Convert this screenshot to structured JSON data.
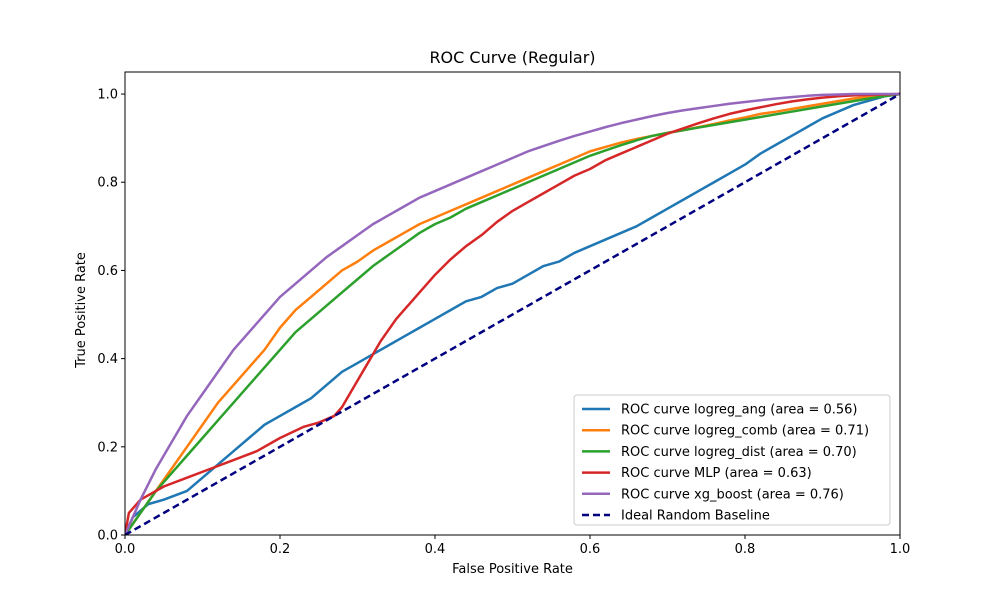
{
  "chart_data": {
    "type": "line",
    "title": "ROC Curve (Regular)",
    "xlabel": "False Positive Rate",
    "ylabel": "True Positive Rate",
    "xlim": [
      0.0,
      1.0
    ],
    "ylim": [
      0.0,
      1.05
    ],
    "xticks": [
      "0.0",
      "0.2",
      "0.4",
      "0.6",
      "0.8",
      "1.0"
    ],
    "yticks": [
      "0.0",
      "0.2",
      "0.4",
      "0.6",
      "0.8",
      "1.0"
    ],
    "grid": false,
    "legend_position": "lower-right",
    "series": [
      {
        "name": "ROC curve logreg_ang (area = 0.56)",
        "color": "#1f77b4",
        "dash": "solid",
        "points": [
          [
            0,
            0
          ],
          [
            0.01,
            0.04
          ],
          [
            0.03,
            0.07
          ],
          [
            0.05,
            0.08
          ],
          [
            0.08,
            0.1
          ],
          [
            0.1,
            0.13
          ],
          [
            0.12,
            0.16
          ],
          [
            0.14,
            0.19
          ],
          [
            0.16,
            0.22
          ],
          [
            0.18,
            0.25
          ],
          [
            0.2,
            0.27
          ],
          [
            0.22,
            0.29
          ],
          [
            0.24,
            0.31
          ],
          [
            0.26,
            0.34
          ],
          [
            0.28,
            0.37
          ],
          [
            0.3,
            0.39
          ],
          [
            0.32,
            0.41
          ],
          [
            0.34,
            0.43
          ],
          [
            0.36,
            0.45
          ],
          [
            0.38,
            0.47
          ],
          [
            0.4,
            0.49
          ],
          [
            0.42,
            0.51
          ],
          [
            0.44,
            0.53
          ],
          [
            0.46,
            0.54
          ],
          [
            0.48,
            0.56
          ],
          [
            0.5,
            0.57
          ],
          [
            0.52,
            0.59
          ],
          [
            0.54,
            0.61
          ],
          [
            0.56,
            0.62
          ],
          [
            0.58,
            0.64
          ],
          [
            0.6,
            0.655
          ],
          [
            0.62,
            0.67
          ],
          [
            0.64,
            0.685
          ],
          [
            0.66,
            0.7
          ],
          [
            0.68,
            0.72
          ],
          [
            0.7,
            0.74
          ],
          [
            0.72,
            0.76
          ],
          [
            0.74,
            0.78
          ],
          [
            0.76,
            0.8
          ],
          [
            0.78,
            0.82
          ],
          [
            0.8,
            0.84
          ],
          [
            0.82,
            0.865
          ],
          [
            0.84,
            0.885
          ],
          [
            0.86,
            0.905
          ],
          [
            0.88,
            0.925
          ],
          [
            0.9,
            0.945
          ],
          [
            0.92,
            0.96
          ],
          [
            0.94,
            0.975
          ],
          [
            0.96,
            0.985
          ],
          [
            0.98,
            0.995
          ],
          [
            1.0,
            1.0
          ]
        ]
      },
      {
        "name": "ROC curve logreg_comb (area = 0.71)",
        "color": "#ff7f0e",
        "dash": "solid",
        "points": [
          [
            0,
            0
          ],
          [
            0.02,
            0.05
          ],
          [
            0.04,
            0.1
          ],
          [
            0.06,
            0.15
          ],
          [
            0.08,
            0.2
          ],
          [
            0.1,
            0.25
          ],
          [
            0.12,
            0.3
          ],
          [
            0.14,
            0.34
          ],
          [
            0.16,
            0.38
          ],
          [
            0.18,
            0.42
          ],
          [
            0.2,
            0.47
          ],
          [
            0.22,
            0.51
          ],
          [
            0.24,
            0.54
          ],
          [
            0.26,
            0.57
          ],
          [
            0.28,
            0.6
          ],
          [
            0.3,
            0.62
          ],
          [
            0.32,
            0.645
          ],
          [
            0.34,
            0.665
          ],
          [
            0.36,
            0.685
          ],
          [
            0.38,
            0.705
          ],
          [
            0.4,
            0.72
          ],
          [
            0.42,
            0.735
          ],
          [
            0.44,
            0.75
          ],
          [
            0.46,
            0.765
          ],
          [
            0.48,
            0.78
          ],
          [
            0.5,
            0.795
          ],
          [
            0.52,
            0.81
          ],
          [
            0.54,
            0.825
          ],
          [
            0.56,
            0.84
          ],
          [
            0.58,
            0.855
          ],
          [
            0.6,
            0.87
          ],
          [
            0.62,
            0.88
          ],
          [
            0.64,
            0.89
          ],
          [
            0.66,
            0.898
          ],
          [
            0.68,
            0.905
          ],
          [
            0.7,
            0.912
          ],
          [
            0.72,
            0.918
          ],
          [
            0.74,
            0.925
          ],
          [
            0.76,
            0.932
          ],
          [
            0.78,
            0.94
          ],
          [
            0.8,
            0.947
          ],
          [
            0.82,
            0.955
          ],
          [
            0.84,
            0.96
          ],
          [
            0.86,
            0.966
          ],
          [
            0.88,
            0.972
          ],
          [
            0.9,
            0.978
          ],
          [
            0.92,
            0.984
          ],
          [
            0.94,
            0.99
          ],
          [
            0.96,
            0.994
          ],
          [
            0.98,
            0.997
          ],
          [
            1.0,
            1.0
          ]
        ]
      },
      {
        "name": "ROC curve logreg_dist (area = 0.70)",
        "color": "#2ca02c",
        "dash": "solid",
        "points": [
          [
            0,
            0
          ],
          [
            0.02,
            0.05
          ],
          [
            0.04,
            0.1
          ],
          [
            0.06,
            0.14
          ],
          [
            0.08,
            0.18
          ],
          [
            0.1,
            0.22
          ],
          [
            0.12,
            0.26
          ],
          [
            0.14,
            0.3
          ],
          [
            0.16,
            0.34
          ],
          [
            0.18,
            0.38
          ],
          [
            0.2,
            0.42
          ],
          [
            0.22,
            0.46
          ],
          [
            0.24,
            0.49
          ],
          [
            0.26,
            0.52
          ],
          [
            0.28,
            0.55
          ],
          [
            0.3,
            0.58
          ],
          [
            0.32,
            0.61
          ],
          [
            0.34,
            0.635
          ],
          [
            0.36,
            0.66
          ],
          [
            0.38,
            0.685
          ],
          [
            0.4,
            0.705
          ],
          [
            0.42,
            0.72
          ],
          [
            0.44,
            0.74
          ],
          [
            0.46,
            0.755
          ],
          [
            0.48,
            0.77
          ],
          [
            0.5,
            0.785
          ],
          [
            0.52,
            0.8
          ],
          [
            0.54,
            0.815
          ],
          [
            0.56,
            0.83
          ],
          [
            0.58,
            0.845
          ],
          [
            0.6,
            0.86
          ],
          [
            0.62,
            0.872
          ],
          [
            0.64,
            0.884
          ],
          [
            0.66,
            0.895
          ],
          [
            0.68,
            0.905
          ],
          [
            0.7,
            0.912
          ],
          [
            0.72,
            0.918
          ],
          [
            0.74,
            0.924
          ],
          [
            0.76,
            0.93
          ],
          [
            0.78,
            0.936
          ],
          [
            0.8,
            0.942
          ],
          [
            0.82,
            0.948
          ],
          [
            0.84,
            0.954
          ],
          [
            0.86,
            0.96
          ],
          [
            0.88,
            0.966
          ],
          [
            0.9,
            0.972
          ],
          [
            0.92,
            0.978
          ],
          [
            0.94,
            0.984
          ],
          [
            0.96,
            0.99
          ],
          [
            0.98,
            0.995
          ],
          [
            1.0,
            1.0
          ]
        ]
      },
      {
        "name": "ROC curve MLP (area = 0.63)",
        "color": "#d62728",
        "dash": "solid",
        "points": [
          [
            0,
            0
          ],
          [
            0.005,
            0.05
          ],
          [
            0.02,
            0.08
          ],
          [
            0.05,
            0.11
          ],
          [
            0.08,
            0.13
          ],
          [
            0.11,
            0.15
          ],
          [
            0.14,
            0.17
          ],
          [
            0.17,
            0.19
          ],
          [
            0.2,
            0.22
          ],
          [
            0.23,
            0.245
          ],
          [
            0.25,
            0.255
          ],
          [
            0.27,
            0.27
          ],
          [
            0.28,
            0.29
          ],
          [
            0.29,
            0.32
          ],
          [
            0.3,
            0.35
          ],
          [
            0.31,
            0.38
          ],
          [
            0.32,
            0.41
          ],
          [
            0.33,
            0.44
          ],
          [
            0.34,
            0.465
          ],
          [
            0.35,
            0.49
          ],
          [
            0.36,
            0.51
          ],
          [
            0.37,
            0.53
          ],
          [
            0.38,
            0.55
          ],
          [
            0.39,
            0.57
          ],
          [
            0.4,
            0.59
          ],
          [
            0.42,
            0.625
          ],
          [
            0.44,
            0.655
          ],
          [
            0.46,
            0.68
          ],
          [
            0.48,
            0.71
          ],
          [
            0.5,
            0.735
          ],
          [
            0.52,
            0.755
          ],
          [
            0.54,
            0.775
          ],
          [
            0.56,
            0.795
          ],
          [
            0.58,
            0.815
          ],
          [
            0.6,
            0.83
          ],
          [
            0.62,
            0.85
          ],
          [
            0.64,
            0.865
          ],
          [
            0.66,
            0.88
          ],
          [
            0.68,
            0.895
          ],
          [
            0.7,
            0.91
          ],
          [
            0.72,
            0.922
          ],
          [
            0.74,
            0.934
          ],
          [
            0.76,
            0.945
          ],
          [
            0.78,
            0.955
          ],
          [
            0.8,
            0.963
          ],
          [
            0.82,
            0.97
          ],
          [
            0.84,
            0.977
          ],
          [
            0.86,
            0.983
          ],
          [
            0.88,
            0.988
          ],
          [
            0.9,
            0.992
          ],
          [
            0.92,
            0.995
          ],
          [
            0.94,
            0.997
          ],
          [
            0.96,
            0.998
          ],
          [
            0.98,
            0.999
          ],
          [
            1.0,
            1.0
          ]
        ]
      },
      {
        "name": "ROC curve xg_boost (area = 0.76)",
        "color": "#9467bd",
        "dash": "solid",
        "points": [
          [
            0,
            0
          ],
          [
            0.02,
            0.08
          ],
          [
            0.04,
            0.15
          ],
          [
            0.06,
            0.21
          ],
          [
            0.08,
            0.27
          ],
          [
            0.1,
            0.32
          ],
          [
            0.12,
            0.37
          ],
          [
            0.14,
            0.42
          ],
          [
            0.16,
            0.46
          ],
          [
            0.18,
            0.5
          ],
          [
            0.2,
            0.54
          ],
          [
            0.22,
            0.57
          ],
          [
            0.24,
            0.6
          ],
          [
            0.26,
            0.63
          ],
          [
            0.28,
            0.655
          ],
          [
            0.3,
            0.68
          ],
          [
            0.32,
            0.705
          ],
          [
            0.34,
            0.725
          ],
          [
            0.36,
            0.745
          ],
          [
            0.38,
            0.765
          ],
          [
            0.4,
            0.78
          ],
          [
            0.42,
            0.795
          ],
          [
            0.44,
            0.81
          ],
          [
            0.46,
            0.825
          ],
          [
            0.48,
            0.84
          ],
          [
            0.5,
            0.855
          ],
          [
            0.52,
            0.87
          ],
          [
            0.54,
            0.882
          ],
          [
            0.56,
            0.894
          ],
          [
            0.58,
            0.905
          ],
          [
            0.6,
            0.915
          ],
          [
            0.62,
            0.925
          ],
          [
            0.64,
            0.934
          ],
          [
            0.66,
            0.942
          ],
          [
            0.68,
            0.95
          ],
          [
            0.7,
            0.957
          ],
          [
            0.72,
            0.963
          ],
          [
            0.74,
            0.968
          ],
          [
            0.76,
            0.973
          ],
          [
            0.78,
            0.978
          ],
          [
            0.8,
            0.982
          ],
          [
            0.82,
            0.986
          ],
          [
            0.84,
            0.99
          ],
          [
            0.86,
            0.993
          ],
          [
            0.88,
            0.996
          ],
          [
            0.9,
            0.998
          ],
          [
            0.92,
            0.999
          ],
          [
            0.94,
            1.0
          ],
          [
            0.96,
            1.0
          ],
          [
            0.98,
            1.0
          ],
          [
            1.0,
            1.0
          ]
        ]
      },
      {
        "name": "Ideal Random Baseline",
        "color": "#000080",
        "dash": "dashed",
        "points": [
          [
            0,
            0
          ],
          [
            1,
            1
          ]
        ]
      }
    ]
  }
}
